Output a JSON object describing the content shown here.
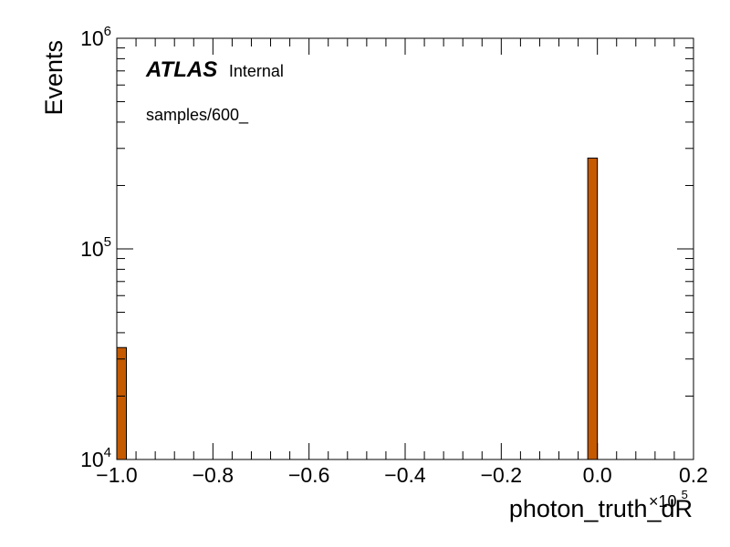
{
  "chart_data": {
    "type": "bar",
    "title": "",
    "atlas_label": {
      "bold": "ATLAS",
      "normal": "Internal"
    },
    "annotation": "samples/600_",
    "xlabel": "photon_truth_dR",
    "ylabel": "Events",
    "x_multiplier": {
      "base": "×10",
      "exponent": "5"
    },
    "xlim": [
      -1.0,
      0.2
    ],
    "ylim": [
      10000,
      1000000
    ],
    "y_log": true,
    "x_ticks": [
      {
        "value": -1.0,
        "label": "−1.0"
      },
      {
        "value": -0.8,
        "label": "−0.8"
      },
      {
        "value": -0.6,
        "label": "−0.6"
      },
      {
        "value": -0.4,
        "label": "−0.4"
      },
      {
        "value": -0.2,
        "label": "−0.2"
      },
      {
        "value": 0.0,
        "label": "0.0"
      },
      {
        "value": 0.2,
        "label": "0.2"
      }
    ],
    "y_ticks": [
      {
        "value": 10000,
        "base": "10",
        "exponent": "4"
      },
      {
        "value": 100000,
        "base": "10",
        "exponent": "5"
      },
      {
        "value": 1000000,
        "base": "10",
        "exponent": "6"
      }
    ],
    "bins": [
      {
        "x_low": -1.0,
        "x_high": -0.98,
        "value": 34000
      },
      {
        "x_low": -0.02,
        "x_high": 0.0,
        "value": 270000
      }
    ],
    "bar_color": "#c55a00",
    "bar_edge_color": "#000000"
  }
}
